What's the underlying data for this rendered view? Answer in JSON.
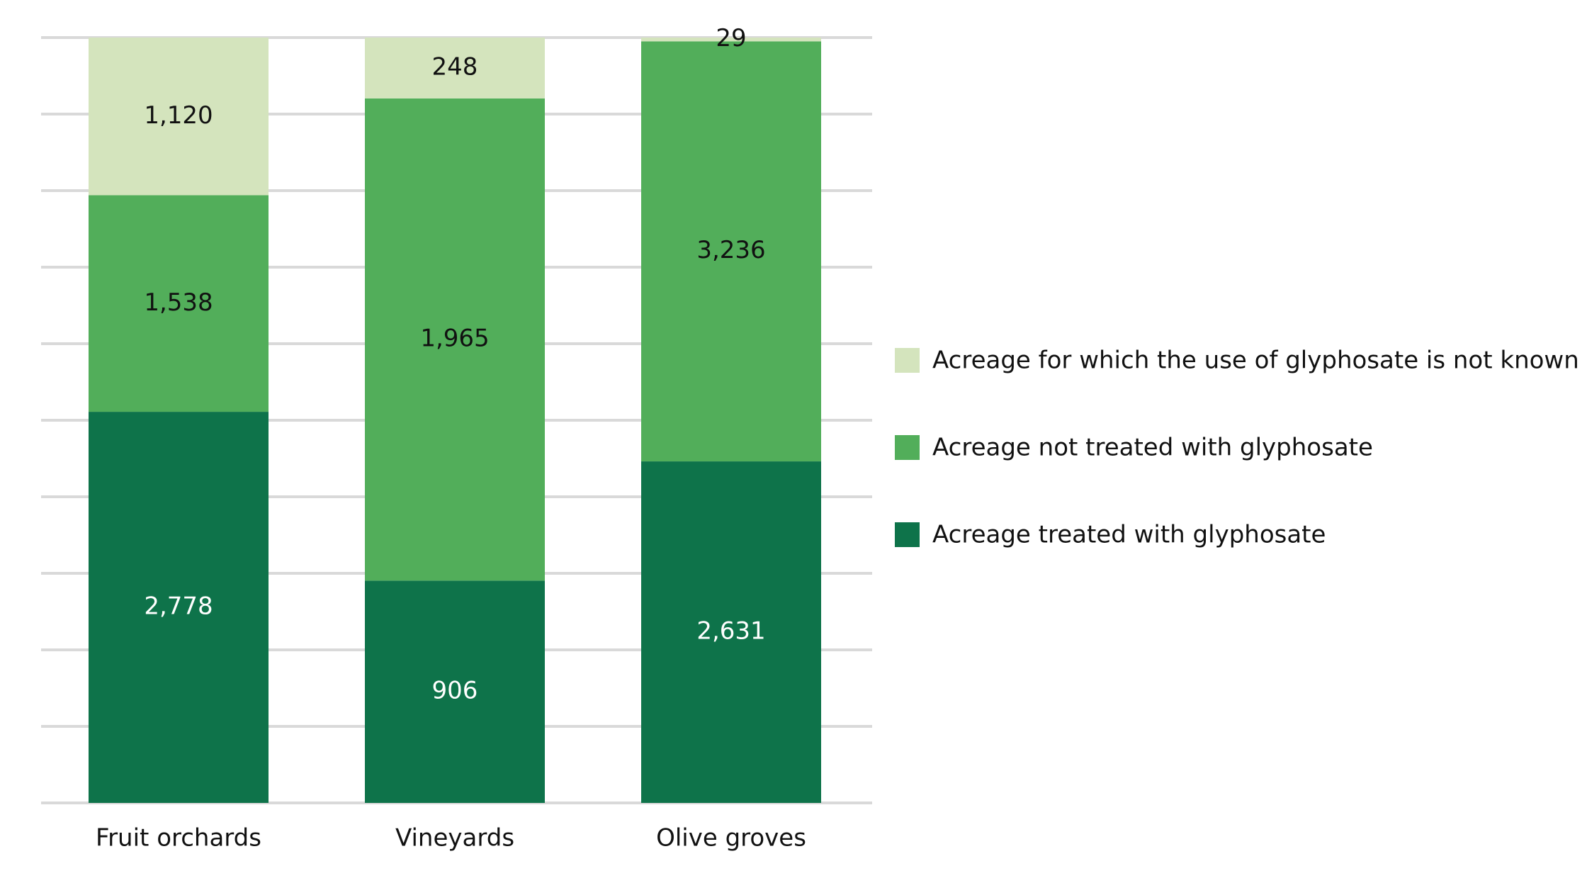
{
  "chart_data": {
    "type": "bar",
    "stacking": "percent",
    "categories": [
      "Fruit orchards",
      "Vineyards",
      "Olive groves"
    ],
    "series": [
      {
        "name": "Acreage treated with glyphosate",
        "color": "#0e734a",
        "label_color": "#ffffff",
        "values": [
          2778,
          906,
          2631
        ],
        "value_labels": [
          "2,778",
          "906",
          "2,631"
        ]
      },
      {
        "name": "Acreage not treated with glyphosate",
        "color": "#52ae5a",
        "label_color": "#111111",
        "values": [
          1538,
          1965,
          3236
        ],
        "value_labels": [
          "1,538",
          "1,965",
          "3,236"
        ]
      },
      {
        "name": "Acreage for which the use of glyphosate is not known",
        "color": "#d4e4bd",
        "label_color": "#111111",
        "values": [
          1120,
          248,
          29
        ],
        "value_labels": [
          "1,120",
          "248",
          "29"
        ]
      }
    ],
    "ylim": [
      0,
      100
    ],
    "yticks": [
      0,
      10,
      20,
      30,
      40,
      50,
      60,
      70,
      80,
      90,
      100
    ],
    "grid": true,
    "legend": "right"
  }
}
